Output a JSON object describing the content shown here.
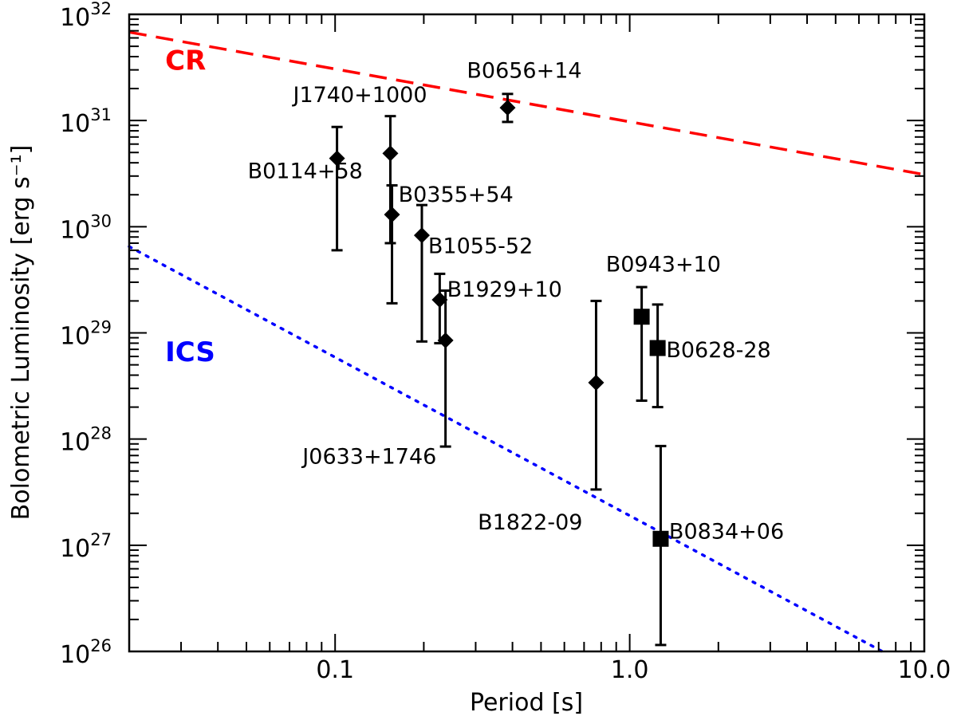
{
  "chart_data": {
    "type": "scatter",
    "xlabel": "Period  [s]",
    "ylabel": "Bolometric Luminosity [erg s⁻¹]",
    "x_scale": "log",
    "y_scale": "log",
    "xlim": [
      0.02,
      10.0
    ],
    "ylim": [
      1e+26,
      1e+32
    ],
    "x_ticks": [
      {
        "value": 0.1,
        "label": "0.1"
      },
      {
        "value": 1.0,
        "label": "1.0"
      },
      {
        "value": 10.0,
        "label": "10.0"
      }
    ],
    "y_ticks": [
      {
        "value": 1e+26,
        "mantissa": "10",
        "exp": "26"
      },
      {
        "value": 1e+27,
        "mantissa": "10",
        "exp": "27"
      },
      {
        "value": 1e+28,
        "mantissa": "10",
        "exp": "28"
      },
      {
        "value": 1e+29,
        "mantissa": "10",
        "exp": "29"
      },
      {
        "value": 1e+30,
        "mantissa": "10",
        "exp": "30"
      },
      {
        "value": 1e+31,
        "mantissa": "10",
        "exp": "31"
      },
      {
        "value": 1e+32,
        "mantissa": "10",
        "exp": "32"
      }
    ],
    "grid": false,
    "models": [
      {
        "label": "CR",
        "color": "#ff0000",
        "style": "dashed",
        "points": [
          [
            0.02,
            6.8e+31
          ],
          [
            10.0,
            3.1e+30
          ]
        ],
        "label_at": [
          0.0265,
          3e+31
        ]
      },
      {
        "label": "ICS",
        "color": "#0000ff",
        "style": "dotted",
        "points": [
          [
            0.02,
            6.5e+29
          ],
          [
            7.2,
            1e+26
          ]
        ],
        "label_at": [
          0.0265,
          5.4e+28
        ]
      }
    ],
    "pulsars": [
      {
        "name": "B0114+58",
        "marker": "diamond",
        "period": 0.1015,
        "lum": 4.4e+30,
        "err_lo": 6e+29,
        "err_hi": 8.7e+30,
        "label_at": [
          0.0505,
          3.4e+30
        ]
      },
      {
        "name": "J1740+1000",
        "marker": "diamond",
        "period": 0.154,
        "lum": 4.9e+30,
        "err_lo": 7e+29,
        "err_hi": 1.1e+31,
        "label_at": [
          0.072,
          1.78e+31
        ]
      },
      {
        "name": "B0355+54",
        "marker": "diamond",
        "period": 0.156,
        "lum": 1.3e+30,
        "err_lo": 1.9e+29,
        "err_hi": 2.45e+30,
        "label_at": [
          0.164,
          2.05e+30
        ]
      },
      {
        "name": "B1055-52",
        "marker": "diamond",
        "period": 0.197,
        "lum": 8.3e+29,
        "err_lo": 8.3e+28,
        "err_hi": 1.6e+30,
        "label_at": [
          0.207,
          6.7e+29
        ]
      },
      {
        "name": "B1929+10",
        "marker": "diamond",
        "period": 0.2265,
        "lum": 2.05e+29,
        "err_lo": 8e+28,
        "err_hi": 3.6e+29,
        "label_at": [
          0.24,
          2.62e+29
        ]
      },
      {
        "name": "J0633+1746",
        "marker": "diamond",
        "period": 0.237,
        "lum": 8.5e+28,
        "err_lo": 8.5e+27,
        "err_hi": 2.5e+29,
        "label_at": [
          0.0775,
          7e+27
        ]
      },
      {
        "name": "B0656+14",
        "marker": "diamond",
        "period": 0.385,
        "lum": 1.32e+31,
        "err_lo": 9.7e+30,
        "err_hi": 1.78e+31,
        "label_at": [
          0.28,
          3e+31
        ]
      },
      {
        "name": "B1822-09",
        "marker": "diamond",
        "period": 0.769,
        "lum": 3.4e+28,
        "err_lo": 3.35e+27,
        "err_hi": 2e+29,
        "label_at": [
          0.305,
          1.67e+27
        ]
      },
      {
        "name": "B0943+10",
        "marker": "square",
        "period": 1.098,
        "lum": 1.42e+29,
        "err_lo": 2.3e+28,
        "err_hi": 2.7e+29,
        "label_at": [
          0.83,
          4.5e+29
        ]
      },
      {
        "name": "B0628-28",
        "marker": "square",
        "period": 1.244,
        "lum": 7.2e+28,
        "err_lo": 2e+28,
        "err_hi": 1.85e+29,
        "label_at": [
          1.33,
          7e+28
        ]
      },
      {
        "name": "B0834+06",
        "marker": "square",
        "period": 1.274,
        "lum": 1.15e+27,
        "err_lo": 1.15e+26,
        "err_hi": 8.6e+27,
        "label_at": [
          1.36,
          1.37e+27
        ]
      }
    ]
  }
}
